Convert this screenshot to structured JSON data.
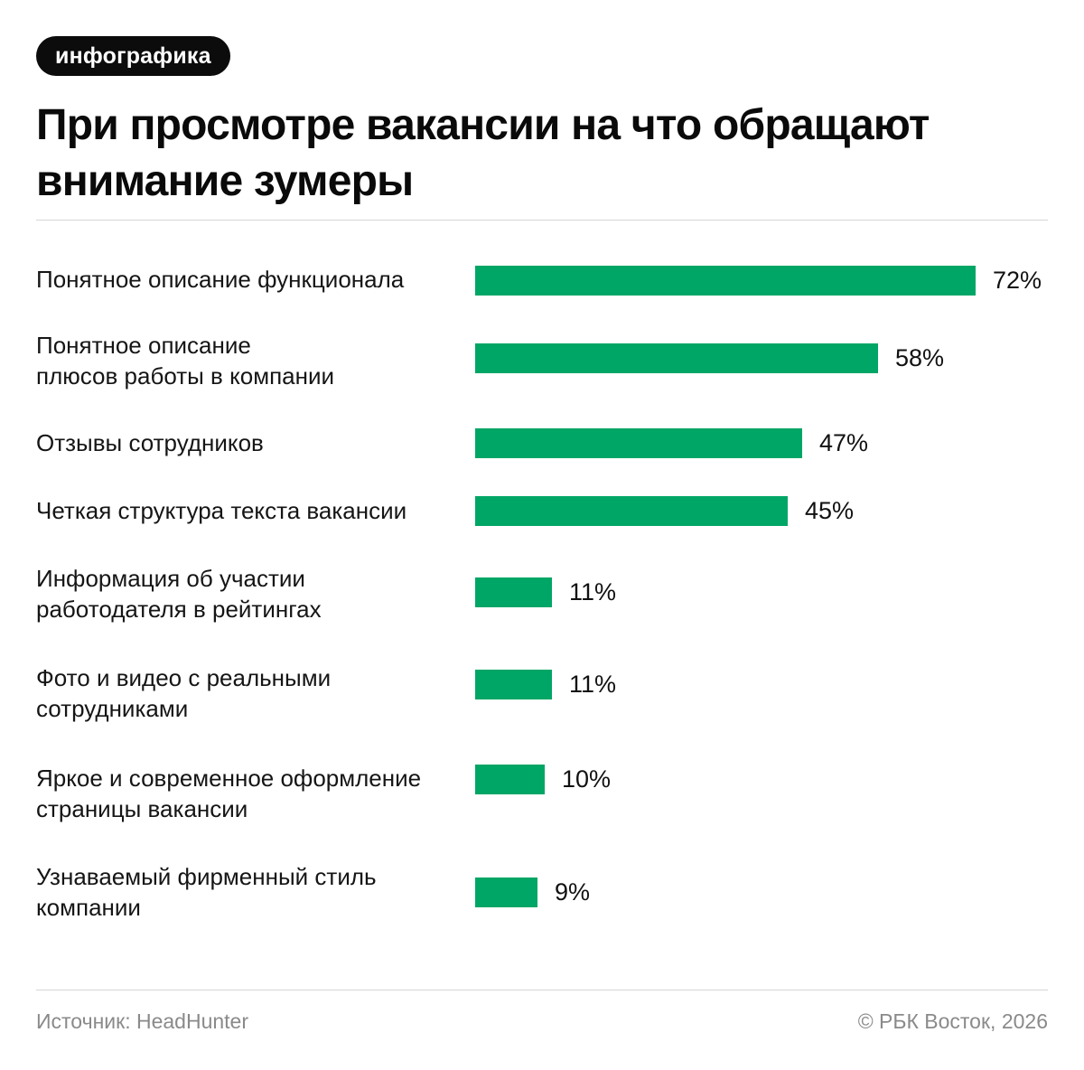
{
  "badge": "инфографика",
  "title": "При просмотре вакансии на что обращают внимание зумеры",
  "chart_data": {
    "type": "bar",
    "orientation": "horizontal",
    "categories": [
      "Понятное описание функционала",
      "Понятное описание\nплюсов работы в компании",
      "Отзывы сотрудников",
      "Четкая структура текста вакансии",
      "Информация об участии\nработодателя в рейтингах",
      "Фото и видео с реальными\nсотрудниками",
      "Яркое и современное оформление\nстраницы вакансии",
      "Узнаваемый фирменный стиль\nкомпании"
    ],
    "values": [
      72,
      58,
      47,
      45,
      11,
      11,
      10,
      9
    ],
    "value_labels": [
      "72%",
      "58%",
      "47%",
      "45%",
      "11%",
      "11%",
      "10%",
      "9%"
    ],
    "unit": "%",
    "bar_color": "#00a665",
    "grid": false,
    "legend": "none"
  },
  "footer": {
    "source": "Источник: HeadHunter",
    "copyright": "© РБК Восток, 2026"
  }
}
